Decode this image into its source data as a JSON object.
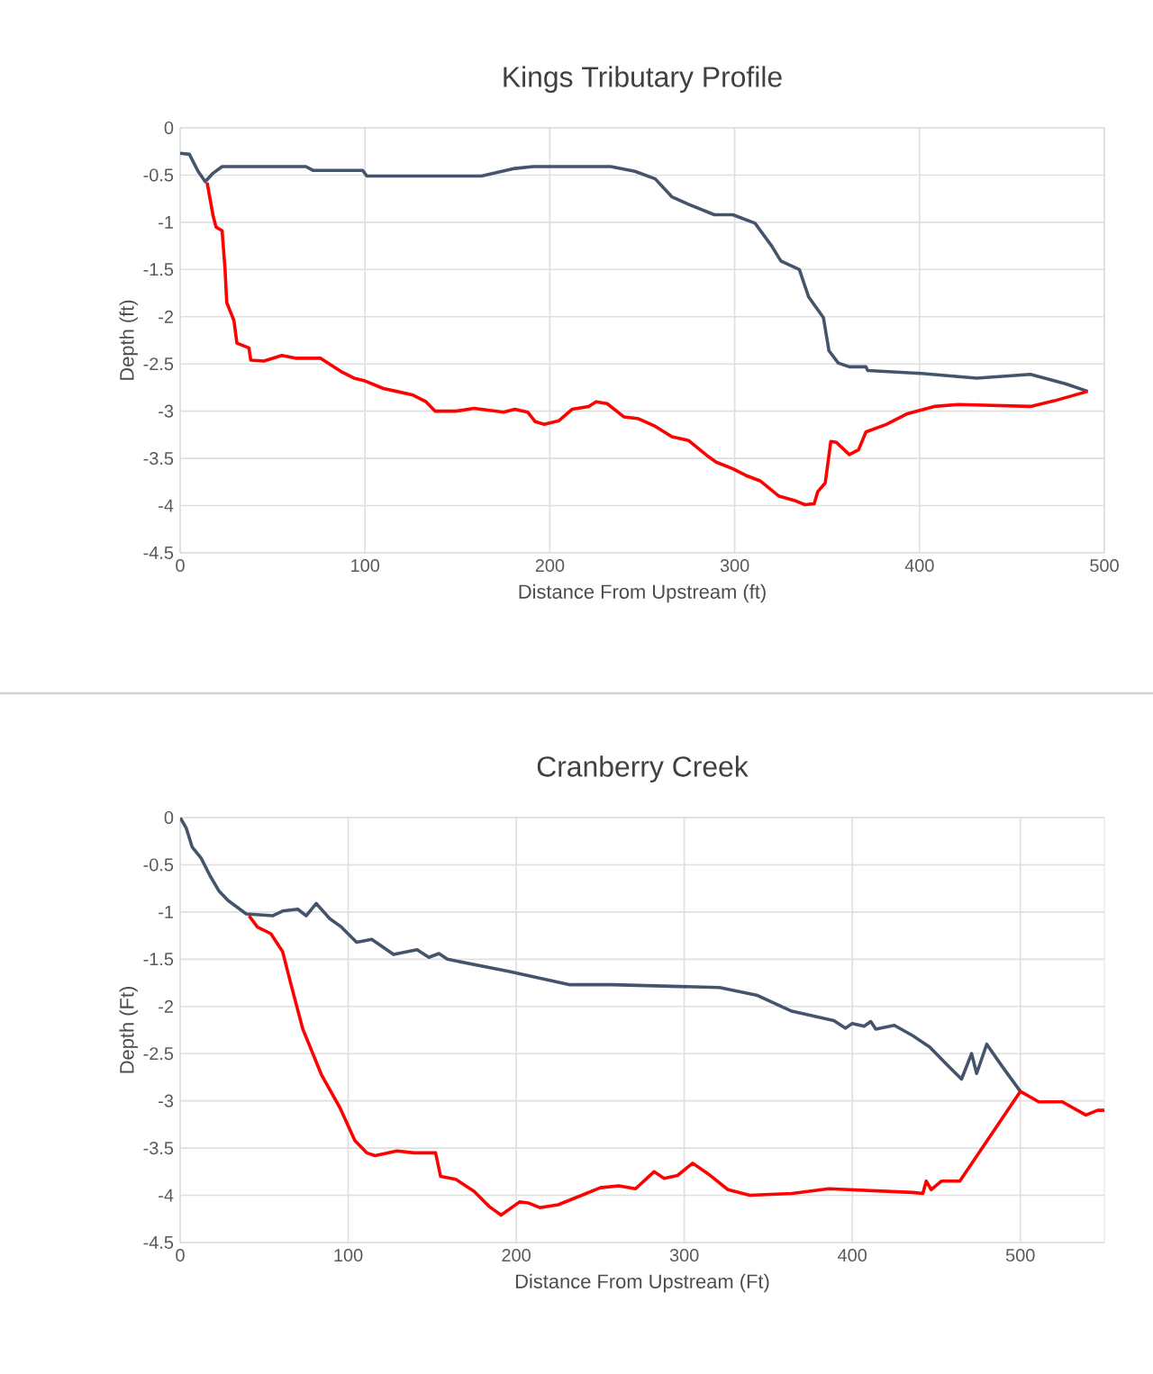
{
  "chart_data": [
    {
      "type": "line",
      "title": "Kings Tributary Profile",
      "xlabel": "Distance From Upstream (ft)",
      "ylabel": "Depth (ft)",
      "xlim": [
        0,
        500
      ],
      "ylim": [
        -4.5,
        0
      ],
      "xticks": [
        0,
        100,
        200,
        300,
        400,
        500
      ],
      "yticks": [
        0,
        -0.5,
        -1,
        -1.5,
        -2,
        -2.5,
        -3,
        -3.5,
        -4,
        -4.5
      ],
      "grid": true,
      "series": [
        {
          "color": "#44546a",
          "x": [
            0,
            5,
            9.7,
            13.6,
            17.8,
            22.7,
            68,
            71.8,
            98.7,
            101,
            163,
            181,
            191,
            233,
            246,
            257,
            266,
            275,
            289,
            299,
            311,
            320,
            325,
            335,
            340,
            348,
            351,
            356,
            362,
            371,
            372,
            401,
            431,
            460,
            479,
            491
          ],
          "values": [
            -0.27,
            -0.28,
            -0.46,
            -0.57,
            -0.48,
            -0.41,
            -0.41,
            -0.45,
            -0.45,
            -0.51,
            -0.51,
            -0.43,
            -0.41,
            -0.41,
            -0.46,
            -0.54,
            -0.73,
            -0.81,
            -0.92,
            -0.92,
            -1.01,
            -1.25,
            -1.41,
            -1.5,
            -1.79,
            -2.01,
            -2.36,
            -2.49,
            -2.53,
            -2.53,
            -2.57,
            -2.6,
            -2.65,
            -2.61,
            -2.71,
            -2.79
          ]
        },
        {
          "color": "#ff0000",
          "x": [
            14.6,
            17.8,
            19.4,
            22.7,
            24.3,
            25.2,
            29.1,
            30.7,
            37.2,
            38.2,
            45.3,
            55,
            63,
            76,
            87,
            94,
            100,
            110,
            117,
            126,
            133,
            138,
            149,
            159,
            175,
            181,
            188,
            192,
            197,
            205,
            212,
            221,
            225,
            231,
            240,
            248,
            257,
            266,
            275,
            285,
            290,
            299,
            306,
            314,
            324,
            333,
            338,
            343,
            345,
            349,
            352,
            355,
            362,
            367,
            371,
            382,
            393,
            408,
            421,
            460,
            473,
            491
          ],
          "values": [
            -0.58,
            -0.93,
            -1.05,
            -1.09,
            -1.5,
            -1.85,
            -2.04,
            -2.28,
            -2.33,
            -2.46,
            -2.47,
            -2.41,
            -2.44,
            -2.44,
            -2.58,
            -2.65,
            -2.68,
            -2.76,
            -2.79,
            -2.83,
            -2.9,
            -3,
            -3,
            -2.97,
            -3.01,
            -2.98,
            -3.01,
            -3.11,
            -3.14,
            -3.1,
            -2.98,
            -2.95,
            -2.9,
            -2.92,
            -3.06,
            -3.08,
            -3.16,
            -3.27,
            -3.31,
            -3.47,
            -3.54,
            -3.61,
            -3.68,
            -3.74,
            -3.9,
            -3.95,
            -3.99,
            -3.98,
            -3.85,
            -3.76,
            -3.32,
            -3.33,
            -3.46,
            -3.41,
            -3.22,
            -3.14,
            -3.03,
            -2.95,
            -2.93,
            -2.95,
            -2.89,
            -2.79
          ]
        }
      ]
    },
    {
      "type": "line",
      "title": "Cranberry  Creek",
      "xlabel": "Distance From Upstream (Ft)",
      "ylabel": "Depth (Ft)",
      "xlim": [
        0,
        550
      ],
      "ylim": [
        -4.5,
        0
      ],
      "xticks": [
        0,
        100,
        200,
        300,
        400,
        500
      ],
      "yticks": [
        0,
        -0.5,
        -1,
        -1.5,
        -2,
        -2.5,
        -3,
        -3.5,
        -4,
        -4.5
      ],
      "grid": true,
      "series": [
        {
          "color": "#44546a",
          "x": [
            0,
            3.6,
            7.1,
            12.5,
            17.9,
            23.2,
            28.6,
            39.3,
            55,
            61,
            70,
            75,
            81,
            89,
            96,
            105,
            114,
            127,
            141,
            148,
            154,
            159,
            196,
            232,
            257,
            321,
            343,
            364,
            389,
            396,
            400,
            407,
            411,
            414,
            425,
            436,
            446,
            457,
            465,
            471,
            474,
            480,
            489,
            500
          ],
          "values": [
            0,
            -0.11,
            -0.31,
            -0.43,
            -0.62,
            -0.78,
            -0.88,
            -1.02,
            -1.04,
            -0.99,
            -0.97,
            -1.04,
            -0.91,
            -1.07,
            -1.16,
            -1.32,
            -1.29,
            -1.45,
            -1.4,
            -1.48,
            -1.44,
            -1.5,
            -1.63,
            -1.77,
            -1.77,
            -1.8,
            -1.88,
            -2.05,
            -2.15,
            -2.23,
            -2.18,
            -2.21,
            -2.16,
            -2.24,
            -2.2,
            -2.31,
            -2.43,
            -2.63,
            -2.77,
            -2.5,
            -2.71,
            -2.4,
            -2.63,
            -2.9
          ]
        },
        {
          "color": "#ff0000",
          "x": [
            41,
            46,
            54,
            61,
            66,
            73,
            84,
            95,
            104,
            111,
            116,
            129,
            139,
            152,
            155,
            164,
            175,
            184,
            191,
            202,
            207,
            214,
            225,
            239,
            250,
            261,
            271,
            282,
            288,
            296,
            305,
            314,
            326,
            339,
            364,
            386,
            436,
            442,
            444,
            447,
            453,
            464,
            500,
            511,
            525,
            539,
            546,
            550
          ],
          "values": [
            -1.04,
            -1.16,
            -1.23,
            -1.42,
            -1.77,
            -2.24,
            -2.72,
            -3.07,
            -3.42,
            -3.55,
            -3.58,
            -3.53,
            -3.55,
            -3.55,
            -3.8,
            -3.83,
            -3.96,
            -4.12,
            -4.21,
            -4.07,
            -4.08,
            -4.13,
            -4.1,
            -4,
            -3.92,
            -3.9,
            -3.93,
            -3.75,
            -3.82,
            -3.79,
            -3.66,
            -3.77,
            -3.94,
            -4,
            -3.98,
            -3.93,
            -3.97,
            -3.98,
            -3.85,
            -3.94,
            -3.85,
            -3.85,
            -2.9,
            -3.01,
            -3.01,
            -3.15,
            -3.1,
            -3.1
          ]
        }
      ]
    }
  ]
}
